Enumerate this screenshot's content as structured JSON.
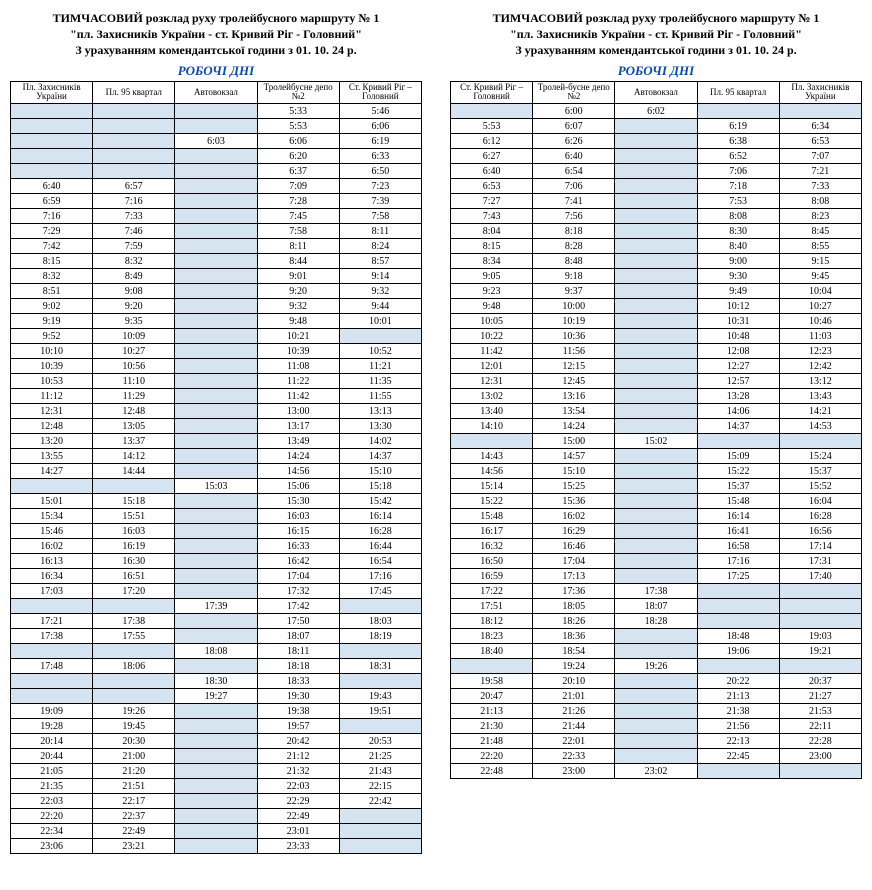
{
  "colors": {
    "shade": "#d6e4f2",
    "accent": "#0a4aa8",
    "border": "#000000",
    "background": "#ffffff"
  },
  "left": {
    "title1": "ТИМЧАСОВИЙ розклад руху тролейбусного маршруту № 1",
    "title2": "\"пл. Захисників України - ст. Кривий Ріг - Головний\"",
    "title3": "З урахуванням комендантської години з 01. 10. 24 р.",
    "days": "РОБОЧІ ДНІ",
    "columns": [
      "Пл. Захисників України",
      "Пл. 95 квартал",
      "Автовокзал",
      "Тролейбусне депо №2",
      "Ст. Кривий Ріг – Головний"
    ],
    "rows": [
      [
        null,
        null,
        null,
        "5:33",
        "5:46"
      ],
      [
        null,
        null,
        null,
        "5:53",
        "6:06"
      ],
      [
        null,
        null,
        "6:03",
        "6:06",
        "6:19"
      ],
      [
        null,
        null,
        null,
        "6:20",
        "6:33"
      ],
      [
        null,
        null,
        null,
        "6:37",
        "6:50"
      ],
      [
        "6:40",
        "6:57",
        null,
        "7:09",
        "7:23"
      ],
      [
        "6:59",
        "7:16",
        null,
        "7:28",
        "7:39"
      ],
      [
        "7:16",
        "7:33",
        null,
        "7:45",
        "7:58"
      ],
      [
        "7:29",
        "7:46",
        null,
        "7:58",
        "8:11"
      ],
      [
        "7:42",
        "7:59",
        null,
        "8:11",
        "8:24"
      ],
      [
        "8:15",
        "8:32",
        null,
        "8:44",
        "8:57"
      ],
      [
        "8:32",
        "8:49",
        null,
        "9:01",
        "9:14"
      ],
      [
        "8:51",
        "9:08",
        null,
        "9:20",
        "9:32"
      ],
      [
        "9:02",
        "9:20",
        null,
        "9:32",
        "9:44"
      ],
      [
        "9:19",
        "9:35",
        null,
        "9:48",
        "10:01"
      ],
      [
        "9:52",
        "10:09",
        null,
        "10:21",
        null
      ],
      [
        "10:10",
        "10:27",
        null,
        "10:39",
        "10:52"
      ],
      [
        "10:39",
        "10:56",
        null,
        "11:08",
        "11:21"
      ],
      [
        "10:53",
        "11:10",
        null,
        "11:22",
        "11:35"
      ],
      [
        "11:12",
        "11:29",
        null,
        "11:42",
        "11:55"
      ],
      [
        "12:31",
        "12:48",
        null,
        "13:00",
        "13:13"
      ],
      [
        "12:48",
        "13:05",
        null,
        "13:17",
        "13:30"
      ],
      [
        "13:20",
        "13:37",
        null,
        "13:49",
        "14:02"
      ],
      [
        "13:55",
        "14:12",
        null,
        "14:24",
        "14:37"
      ],
      [
        "14:27",
        "14:44",
        null,
        "14:56",
        "15:10"
      ],
      [
        null,
        null,
        "15:03",
        "15:06",
        "15:18"
      ],
      [
        "15:01",
        "15:18",
        null,
        "15:30",
        "15:42"
      ],
      [
        "15:34",
        "15:51",
        null,
        "16:03",
        "16:14"
      ],
      [
        "15:46",
        "16:03",
        null,
        "16:15",
        "16:28"
      ],
      [
        "16:02",
        "16:19",
        null,
        "16:33",
        "16:44"
      ],
      [
        "16:13",
        "16:30",
        null,
        "16:42",
        "16:54"
      ],
      [
        "16:34",
        "16:51",
        null,
        "17:04",
        "17:16"
      ],
      [
        "17:03",
        "17:20",
        null,
        "17:32",
        "17:45"
      ],
      [
        null,
        null,
        "17:39",
        "17:42",
        null
      ],
      [
        "17:21",
        "17:38",
        null,
        "17:50",
        "18:03"
      ],
      [
        "17:38",
        "17:55",
        null,
        "18:07",
        "18:19"
      ],
      [
        null,
        null,
        "18:08",
        "18:11",
        null
      ],
      [
        "17:48",
        "18:06",
        null,
        "18:18",
        "18:31"
      ],
      [
        null,
        null,
        "18:30",
        "18:33",
        null
      ],
      [
        null,
        null,
        "19:27",
        "19:30",
        "19:43"
      ],
      [
        "19:09",
        "19:26",
        null,
        "19:38",
        "19:51"
      ],
      [
        "19:28",
        "19:45",
        null,
        "19:57",
        null
      ],
      [
        "20:14",
        "20:30",
        null,
        "20:42",
        "20:53"
      ],
      [
        "20:44",
        "21:00",
        null,
        "21:12",
        "21:25"
      ],
      [
        "21:05",
        "21:20",
        null,
        "21:32",
        "21:43"
      ],
      [
        "21:35",
        "21:51",
        null,
        "22:03",
        "22:15"
      ],
      [
        "22:03",
        "22:17",
        null,
        "22:29",
        "22:42"
      ],
      [
        "22:20",
        "22:37",
        null,
        "22:49",
        null
      ],
      [
        "22:34",
        "22:49",
        null,
        "23:01",
        null
      ],
      [
        "23:06",
        "23:21",
        null,
        "23:33",
        null
      ]
    ]
  },
  "right": {
    "title1": "ТИМЧАСОВИЙ розклад руху тролейбусного маршруту № 1",
    "title2": "\"пл. Захисників України - ст. Кривий Ріг - Головний\"",
    "title3": "З урахуванням комендантської години з 01. 10. 24 р.",
    "days": "РОБОЧІ ДНІ",
    "columns": [
      "Ст. Кривий Ріг – Головний",
      "Тролей-бусне депо №2",
      "Автовокзал",
      "Пл. 95 квартал",
      "Пл. Захисників України"
    ],
    "rows": [
      [
        null,
        "6:00",
        "6:02",
        null,
        null
      ],
      [
        "5:53",
        "6:07",
        null,
        "6:19",
        "6:34"
      ],
      [
        "6:12",
        "6:26",
        null,
        "6:38",
        "6:53"
      ],
      [
        "6:27",
        "6:40",
        null,
        "6:52",
        "7:07"
      ],
      [
        "6:40",
        "6:54",
        null,
        "7:06",
        "7:21"
      ],
      [
        "6:53",
        "7:06",
        null,
        "7:18",
        "7:33"
      ],
      [
        "7:27",
        "7:41",
        null,
        "7:53",
        "8:08"
      ],
      [
        "7:43",
        "7:56",
        null,
        "8:08",
        "8:23"
      ],
      [
        "8:04",
        "8:18",
        null,
        "8:30",
        "8:45"
      ],
      [
        "8:15",
        "8:28",
        null,
        "8:40",
        "8:55"
      ],
      [
        "8:34",
        "8:48",
        null,
        "9:00",
        "9:15"
      ],
      [
        "9:05",
        "9:18",
        null,
        "9:30",
        "9:45"
      ],
      [
        "9:23",
        "9:37",
        null,
        "9:49",
        "10:04"
      ],
      [
        "9:48",
        "10:00",
        null,
        "10:12",
        "10:27"
      ],
      [
        "10:05",
        "10:19",
        null,
        "10:31",
        "10:46"
      ],
      [
        "10:22",
        "10:36",
        null,
        "10:48",
        "11:03"
      ],
      [
        "11:42",
        "11:56",
        null,
        "12:08",
        "12:23"
      ],
      [
        "12:01",
        "12:15",
        null,
        "12:27",
        "12:42"
      ],
      [
        "12:31",
        "12:45",
        null,
        "12:57",
        "13:12"
      ],
      [
        "13:02",
        "13:16",
        null,
        "13:28",
        "13:43"
      ],
      [
        "13:40",
        "13:54",
        null,
        "14:06",
        "14:21"
      ],
      [
        "14:10",
        "14:24",
        null,
        "14:37",
        "14:53"
      ],
      [
        null,
        "15:00",
        "15:02",
        null,
        null
      ],
      [
        "14:43",
        "14:57",
        null,
        "15:09",
        "15:24"
      ],
      [
        "14:56",
        "15:10",
        null,
        "15:22",
        "15:37"
      ],
      [
        "15:14",
        "15:25",
        null,
        "15:37",
        "15:52"
      ],
      [
        "15:22",
        "15:36",
        null,
        "15:48",
        "16:04"
      ],
      [
        "15:48",
        "16:02",
        null,
        "16:14",
        "16:28"
      ],
      [
        "16:17",
        "16:29",
        null,
        "16:41",
        "16:56"
      ],
      [
        "16:32",
        "16:46",
        null,
        "16:58",
        "17:14"
      ],
      [
        "16:50",
        "17:04",
        null,
        "17:16",
        "17:31"
      ],
      [
        "16:59",
        "17:13",
        null,
        "17:25",
        "17:40"
      ],
      [
        "17:22",
        "17:36",
        "17:38",
        null,
        null
      ],
      [
        "17:51",
        "18:05",
        "18:07",
        null,
        null
      ],
      [
        "18:12",
        "18:26",
        "18:28",
        null,
        null
      ],
      [
        "18:23",
        "18:36",
        null,
        "18:48",
        "19:03"
      ],
      [
        "18:40",
        "18:54",
        null,
        "19:06",
        "19:21"
      ],
      [
        null,
        "19:24",
        "19:26",
        null,
        null
      ],
      [
        "19:58",
        "20:10",
        null,
        "20:22",
        "20:37"
      ],
      [
        "20:47",
        "21:01",
        null,
        "21:13",
        "21:27"
      ],
      [
        "21:13",
        "21:26",
        null,
        "21:38",
        "21:53"
      ],
      [
        "21:30",
        "21:44",
        null,
        "21:56",
        "22:11"
      ],
      [
        "21:48",
        "22:01",
        null,
        "22:13",
        "22:28"
      ],
      [
        "22:20",
        "22:33",
        null,
        "22:45",
        "23:00"
      ],
      [
        "22:48",
        "23:00",
        "23:02",
        null,
        null
      ]
    ]
  }
}
